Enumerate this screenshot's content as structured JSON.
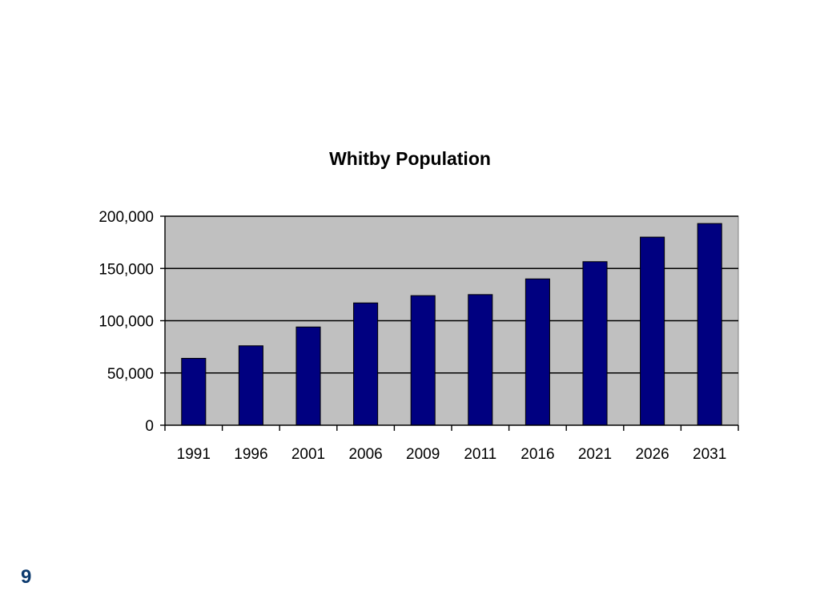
{
  "slide": {
    "page_number": "9"
  },
  "colors": {
    "bar_fill": "#000080",
    "plot_background": "#c0c0c0",
    "page_number": "#0b3a6e"
  },
  "chart_data": {
    "type": "bar",
    "title": "Whitby Population",
    "xlabel": "",
    "ylabel": "",
    "categories": [
      "1991",
      "1996",
      "2001",
      "2006",
      "2009",
      "2011",
      "2016",
      "2021",
      "2026",
      "2031"
    ],
    "values": [
      64000,
      76000,
      94000,
      117000,
      124000,
      125000,
      140000,
      156500,
      180000,
      193000
    ],
    "ylim": [
      0,
      200000
    ],
    "yticks": [
      0,
      50000,
      100000,
      150000,
      200000
    ],
    "ytick_labels": [
      "0",
      "50,000",
      "100,000",
      "150,000",
      "200,000"
    ],
    "grid": true,
    "legend": "none"
  }
}
